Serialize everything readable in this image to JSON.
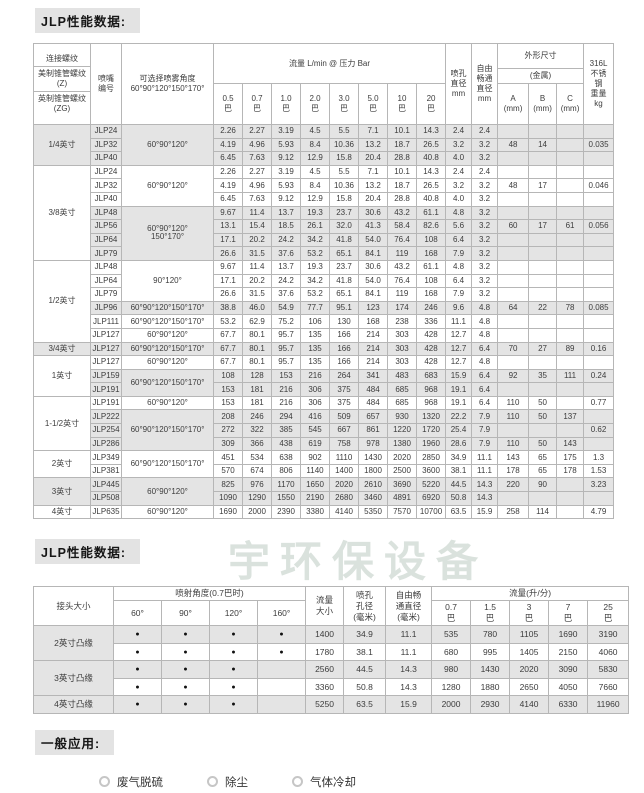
{
  "titles": {
    "t1": "JLP性能数据:",
    "t2": "JLP性能数据:",
    "apps": "一般应用:"
  },
  "watermark": "宇环保设备",
  "colors": {
    "shade": "#e4e4e4",
    "border": "#b6b6b6",
    "badge_bg": "#e3e3e3",
    "watermark": "#b7c6bc"
  },
  "table1": {
    "header": {
      "conn1": "连接螺纹",
      "conn2": "美制锥管螺纹(Z)",
      "conn3": "英制锥管螺纹(ZG)",
      "nozzle": "喷嘴\n编号",
      "angle_title": "可选择喷雾角度",
      "angle_values": "60°90°120°150°170°",
      "flow_title": "流量 L/min @ 压力 Bar",
      "d_col": "喷孔\n直径\nmm",
      "free_col": "自由\n畅通\n直径\nmm",
      "dims_title": "外形尺寸",
      "dims_metal": "(金属)",
      "dim_cols": [
        "A",
        "B",
        "C"
      ],
      "dim_unit": "(mm)",
      "weight_col": "316L\n不锈\n钢\n重量\nkg"
    },
    "pressures": [
      "0.5",
      "0.7",
      "1.0",
      "2.0",
      "3.0",
      "5.0",
      "10",
      "20"
    ],
    "pressure_unit": "巴",
    "rows": [
      {
        "c": "1/4英寸",
        "cs": 3,
        "n": "JLP24",
        "al": "60°90°120°",
        "as": 3,
        "f": [
          "2.26",
          "2.27",
          "3.19",
          "4.5",
          "5.5",
          "7.1",
          "10.1",
          "14.3"
        ],
        "d": "2.4",
        "fr": "2.4",
        "a": "",
        "b": "",
        "cc": "",
        "w": "",
        "g": 1
      },
      {
        "n": "JLP32",
        "f": [
          "4.19",
          "4.96",
          "5.93",
          "8.4",
          "10.36",
          "13.2",
          "18.7",
          "26.5"
        ],
        "d": "3.2",
        "fr": "3.2",
        "a": "48",
        "b": "14",
        "cc": "",
        "w": "0.035",
        "g": 1
      },
      {
        "n": "JLP40",
        "f": [
          "6.45",
          "7.63",
          "9.12",
          "12.9",
          "15.8",
          "20.4",
          "28.8",
          "40.8"
        ],
        "d": "4.0",
        "fr": "3.2",
        "a": "",
        "b": "",
        "cc": "",
        "w": "",
        "g": 1,
        "ge": 1
      },
      {
        "c": "3/8英寸",
        "cs": 7,
        "n": "JLP24",
        "al": "60°90°120°",
        "as": 3,
        "f": [
          "2.26",
          "2.27",
          "3.19",
          "4.5",
          "5.5",
          "7.1",
          "10.1",
          "14.3"
        ],
        "d": "2.4",
        "fr": "2.4",
        "a": "",
        "b": "",
        "cc": "",
        "w": ""
      },
      {
        "n": "JLP32",
        "f": [
          "4.19",
          "4.96",
          "5.93",
          "8.4",
          "10.36",
          "13.2",
          "18.7",
          "26.5"
        ],
        "d": "3.2",
        "fr": "3.2",
        "a": "48",
        "b": "17",
        "cc": "",
        "w": "0.046"
      },
      {
        "n": "JLP40",
        "f": [
          "6.45",
          "7.63",
          "9.12",
          "12.9",
          "15.8",
          "20.4",
          "28.8",
          "40.8"
        ],
        "d": "4.0",
        "fr": "3.2",
        "a": "",
        "b": "",
        "cc": "",
        "w": "",
        "ge": 1
      },
      {
        "n": "JLP48",
        "al": "60°90°120°",
        "al2": "150°170°",
        "as": 4,
        "f": [
          "9.67",
          "11.4",
          "13.7",
          "19.3",
          "23.7",
          "30.6",
          "43.2",
          "61.1"
        ],
        "d": "4.8",
        "fr": "3.2",
        "a": "",
        "b": "",
        "cc": "",
        "w": "",
        "g": 1
      },
      {
        "n": "JLP56",
        "f": [
          "13.1",
          "15.4",
          "18.5",
          "26.1",
          "32.0",
          "41.3",
          "58.4",
          "82.6"
        ],
        "d": "5.6",
        "fr": "3.2",
        "a": "60",
        "b": "17",
        "cc": "61",
        "w": "0.056",
        "g": 1
      },
      {
        "n": "JLP64",
        "f": [
          "17.1",
          "20.2",
          "24.2",
          "34.2",
          "41.8",
          "54.0",
          "76.4",
          "108"
        ],
        "d": "6.4",
        "fr": "3.2",
        "a": "",
        "b": "",
        "cc": "",
        "w": "",
        "g": 1
      },
      {
        "n": "JLP79",
        "f": [
          "26.6",
          "31.5",
          "37.6",
          "53.2",
          "65.1",
          "84.1",
          "119",
          "168"
        ],
        "d": "7.9",
        "fr": "3.2",
        "a": "",
        "b": "",
        "cc": "",
        "w": "",
        "g": 1,
        "ge": 1
      },
      {
        "c": "1/2英寸",
        "cs": 6,
        "n": "JLP48",
        "al": "90°120°",
        "as": 3,
        "f": [
          "9.67",
          "11.4",
          "13.7",
          "19.3",
          "23.7",
          "30.6",
          "43.2",
          "61.1"
        ],
        "d": "4.8",
        "fr": "3.2",
        "a": "",
        "b": "",
        "cc": "",
        "w": ""
      },
      {
        "n": "JLP64",
        "f": [
          "17.1",
          "20.2",
          "24.2",
          "34.2",
          "41.8",
          "54.0",
          "76.4",
          "108"
        ],
        "d": "6.4",
        "fr": "3.2",
        "a": "",
        "b": "",
        "cc": "",
        "w": ""
      },
      {
        "n": "JLP79",
        "f": [
          "26.6",
          "31.5",
          "37.6",
          "53.2",
          "65.1",
          "84.1",
          "119",
          "168"
        ],
        "d": "7.9",
        "fr": "3.2",
        "a": "",
        "b": "",
        "cc": "",
        "w": "",
        "ge": 1
      },
      {
        "n": "JLP96",
        "al": "60°90°120°150°170°",
        "as": 1,
        "f": [
          "38.8",
          "46.0",
          "54.9",
          "77.7",
          "95.1",
          "123",
          "174",
          "246"
        ],
        "d": "9.6",
        "fr": "4.8",
        "a": "64",
        "b": "22",
        "cc": "78",
        "w": "0.085",
        "g": 1,
        "ge": 1
      },
      {
        "n": "JLP111",
        "al": "60°90°120°150°170°",
        "as": 1,
        "f": [
          "53.2",
          "62.9",
          "75.2",
          "106",
          "130",
          "168",
          "238",
          "336"
        ],
        "d": "11.1",
        "fr": "4.8",
        "a": "",
        "b": "",
        "cc": "",
        "w": "",
        "ge": 1
      },
      {
        "n": "JLP127",
        "al": "60°90°120°",
        "as": 1,
        "f": [
          "67.7",
          "80.1",
          "95.7",
          "135",
          "166",
          "214",
          "303",
          "428"
        ],
        "d": "12.7",
        "fr": "4.8",
        "a": "",
        "b": "",
        "cc": "",
        "w": "",
        "ge": 1
      },
      {
        "c": "3/4英寸",
        "cs": 1,
        "n": "JLP127",
        "al": "60°90°120°150°170°",
        "as": 1,
        "f": [
          "67.7",
          "80.1",
          "95.7",
          "135",
          "166",
          "214",
          "303",
          "428"
        ],
        "d": "12.7",
        "fr": "6.4",
        "a": "70",
        "b": "27",
        "cc": "89",
        "w": "0.16",
        "g": 1,
        "ge": 1
      },
      {
        "c": "1英寸",
        "cs": 3,
        "n": "JLP127",
        "al": "60°90°120°",
        "as": 1,
        "f": [
          "67.7",
          "80.1",
          "95.7",
          "135",
          "166",
          "214",
          "303",
          "428"
        ],
        "d": "12.7",
        "fr": "4.8",
        "a": "",
        "b": "",
        "cc": "",
        "w": "",
        "ge": 1
      },
      {
        "n": "JLP159",
        "al": "60°90°120°150°170°",
        "as": 2,
        "f": [
          "108",
          "128",
          "153",
          "216",
          "264",
          "341",
          "483",
          "683"
        ],
        "d": "15.9",
        "fr": "6.4",
        "a": "92",
        "b": "35",
        "cc": "111",
        "w": "0.24",
        "g": 1
      },
      {
        "n": "JLP191",
        "f": [
          "153",
          "181",
          "216",
          "306",
          "375",
          "484",
          "685",
          "968"
        ],
        "d": "19.1",
        "fr": "6.4",
        "a": "",
        "b": "",
        "cc": "",
        "w": "",
        "g": 1,
        "ge": 1
      },
      {
        "c": "1-1/2英寸",
        "cs": 4,
        "n": "JLP191",
        "al": "60°90°120°",
        "as": 1,
        "f": [
          "153",
          "181",
          "216",
          "306",
          "375",
          "484",
          "685",
          "968"
        ],
        "d": "19.1",
        "fr": "6.4",
        "a": "110",
        "b": "50",
        "cc": "",
        "w": "0.77",
        "ge": 1
      },
      {
        "n": "JLP222",
        "al": "60°90°120°150°170°",
        "as": 3,
        "f": [
          "208",
          "246",
          "294",
          "416",
          "509",
          "657",
          "930",
          "1320"
        ],
        "d": "22.2",
        "fr": "7.9",
        "a": "110",
        "b": "50",
        "cc": "137",
        "w": "",
        "g": 1
      },
      {
        "n": "JLP254",
        "f": [
          "272",
          "322",
          "385",
          "545",
          "667",
          "861",
          "1220",
          "1720"
        ],
        "d": "25.4",
        "fr": "7.9",
        "a": "",
        "b": "",
        "cc": "",
        "w": "0.62",
        "g": 1
      },
      {
        "n": "JLP286",
        "f": [
          "309",
          "366",
          "438",
          "619",
          "758",
          "978",
          "1380",
          "1960"
        ],
        "d": "28.6",
        "fr": "7.9",
        "a": "110",
        "b": "50",
        "cc": "143",
        "w": "",
        "g": 1,
        "ge": 1
      },
      {
        "c": "2英寸",
        "cs": 2,
        "n": "JLP349",
        "al": "60°90°120°150°170°",
        "as": 2,
        "f": [
          "451",
          "534",
          "638",
          "902",
          "1110",
          "1430",
          "2020",
          "2850"
        ],
        "d": "34.9",
        "fr": "11.1",
        "a": "143",
        "b": "65",
        "cc": "175",
        "w": "1.3"
      },
      {
        "n": "JLP381",
        "f": [
          "570",
          "674",
          "806",
          "1140",
          "1400",
          "1800",
          "2500",
          "3600"
        ],
        "d": "38.1",
        "fr": "11.1",
        "a": "178",
        "b": "65",
        "cc": "178",
        "w": "1.53",
        "ge": 1
      },
      {
        "c": "3英寸",
        "cs": 2,
        "n": "JLP445",
        "al": "60°90°120°",
        "as": 2,
        "f": [
          "825",
          "976",
          "1170",
          "1650",
          "2020",
          "2610",
          "3690",
          "5220"
        ],
        "d": "44.5",
        "fr": "14.3",
        "a": "220",
        "b": "90",
        "cc": "",
        "w": "3.23",
        "g": 1
      },
      {
        "n": "JLP508",
        "f": [
          "1090",
          "1290",
          "1550",
          "2190",
          "2680",
          "3460",
          "4891",
          "6920"
        ],
        "d": "50.8",
        "fr": "14.3",
        "a": "",
        "b": "",
        "cc": "",
        "w": "",
        "g": 1,
        "ge": 1
      },
      {
        "c": "4英寸",
        "cs": 1,
        "n": "JLP635",
        "al": "60°90°120°",
        "as": 1,
        "f": [
          "1690",
          "2000",
          "2390",
          "3380",
          "4140",
          "5350",
          "7570",
          "10700"
        ],
        "d": "63.5",
        "fr": "15.9",
        "a": "258",
        "b": "114",
        "cc": "",
        "w": "4.79",
        "ge": 1
      }
    ]
  },
  "table2": {
    "header": {
      "conn": "接头大小",
      "angle_title": "喷射角度(0.7巴时)",
      "angles": [
        "60°",
        "90°",
        "120°",
        "160°"
      ],
      "cap": "流量\n大小",
      "d": "喷孔\n孔径\n(毫米)",
      "free": "自由畅\n通直径\n(毫米)",
      "flow_title": "流量(升/分)",
      "flow_heads": [
        "0.7\n巴",
        "1.5\n巴",
        "3\n巴",
        "7\n巴",
        "25\n巴"
      ]
    },
    "rows": [
      {
        "c": "2英寸凸缘",
        "cs": 2,
        "dots": [
          1,
          1,
          1,
          1
        ],
        "cap": "1400",
        "d": "34.9",
        "fr": "11.1",
        "f": [
          "535",
          "780",
          "1105",
          "1690",
          "3190"
        ],
        "g": 1
      },
      {
        "dots": [
          1,
          1,
          1,
          1
        ],
        "cap": "1780",
        "d": "38.1",
        "fr": "11.1",
        "f": [
          "680",
          "995",
          "1405",
          "2150",
          "4060"
        ]
      },
      {
        "c": "3英寸凸缘",
        "cs": 2,
        "dots": [
          1,
          1,
          1,
          0
        ],
        "cap": "2560",
        "d": "44.5",
        "fr": "14.3",
        "f": [
          "980",
          "1430",
          "2020",
          "3090",
          "5830"
        ],
        "g": 1
      },
      {
        "dots": [
          1,
          1,
          1,
          0
        ],
        "cap": "3360",
        "d": "50.8",
        "fr": "14.3",
        "f": [
          "1280",
          "1880",
          "2650",
          "4050",
          "7660"
        ]
      },
      {
        "c": "4英寸凸缘",
        "cs": 1,
        "dots": [
          1,
          1,
          1,
          0
        ],
        "cap": "5250",
        "d": "63.5",
        "fr": "15.9",
        "f": [
          "2000",
          "2930",
          "4140",
          "6330",
          "11960"
        ],
        "g": 1
      }
    ]
  },
  "applications": {
    "items": [
      "废气脱硫",
      "除尘",
      "气体冷却"
    ]
  }
}
